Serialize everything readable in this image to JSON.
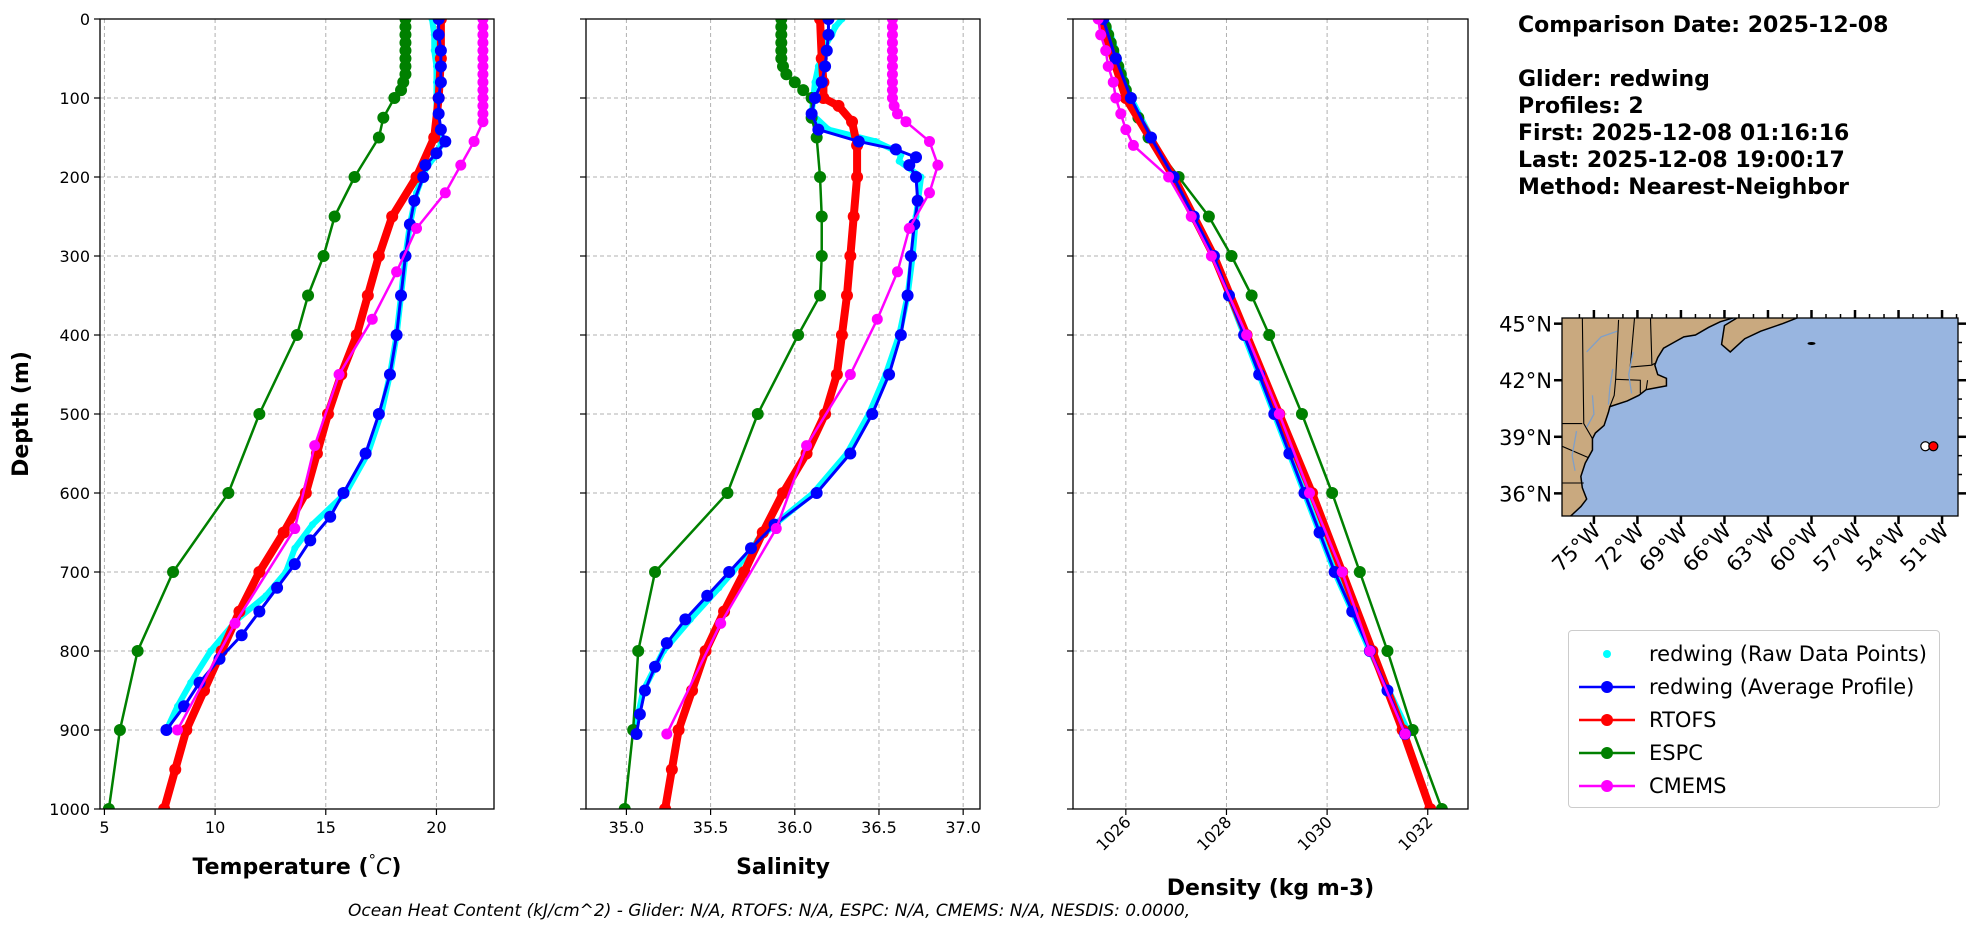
{
  "chart_data": [
    {
      "type": "line",
      "xlabel": "Temperature (°C)",
      "ylabel": "Depth (m)",
      "xlim": [
        4.8,
        22.6
      ],
      "ylim": [
        1000,
        0
      ],
      "xticks": [
        5,
        10,
        15,
        20
      ],
      "yticks": [
        0,
        100,
        200,
        300,
        400,
        500,
        600,
        700,
        800,
        900,
        1000
      ],
      "grid": true,
      "raw": {
        "name": "redwing (Raw Data Points)",
        "depth": [
          0,
          20,
          40,
          60,
          80,
          100,
          120,
          140,
          160,
          175,
          190,
          220,
          260,
          300,
          350,
          400,
          450,
          500,
          550,
          600,
          640,
          670,
          700,
          730,
          760,
          800,
          840,
          870,
          900
        ],
        "values": [
          19.8,
          19.9,
          19.9,
          20.0,
          20.0,
          20.0,
          20.0,
          20.1,
          20.2,
          19.9,
          19.5,
          19.1,
          18.8,
          18.6,
          18.4,
          18.2,
          17.9,
          17.5,
          16.9,
          15.9,
          14.4,
          13.6,
          13.2,
          12.3,
          11.0,
          9.8,
          8.9,
          8.3,
          7.8
        ]
      },
      "series": [
        {
          "name": "redwing (Average Profile)",
          "depth": [
            0,
            20,
            40,
            60,
            80,
            100,
            120,
            140,
            155,
            170,
            185,
            200,
            230,
            260,
            300,
            350,
            400,
            450,
            500,
            550,
            600,
            630,
            660,
            690,
            720,
            750,
            780,
            810,
            840,
            870,
            900
          ],
          "values": [
            20.1,
            20.1,
            20.2,
            20.2,
            20.2,
            20.1,
            20.1,
            20.2,
            20.4,
            20.0,
            19.5,
            19.4,
            19.0,
            18.8,
            18.6,
            18.4,
            18.2,
            17.9,
            17.4,
            16.8,
            15.8,
            15.2,
            14.3,
            13.6,
            12.8,
            12.0,
            11.2,
            10.2,
            9.3,
            8.6,
            7.8
          ]
        },
        {
          "name": "RTOFS",
          "depth": [
            0,
            50,
            100,
            150,
            200,
            250,
            300,
            350,
            400,
            450,
            500,
            550,
            600,
            650,
            700,
            750,
            800,
            850,
            900,
            950,
            1000
          ],
          "values": [
            20.2,
            20.2,
            20.1,
            19.9,
            19.1,
            18.0,
            17.4,
            16.9,
            16.4,
            15.7,
            15.1,
            14.6,
            14.1,
            13.1,
            12.0,
            11.1,
            10.3,
            9.5,
            8.7,
            8.2,
            7.7
          ]
        },
        {
          "name": "ESPC",
          "depth": [
            0,
            10,
            20,
            30,
            40,
            50,
            60,
            70,
            80,
            90,
            100,
            125,
            150,
            200,
            250,
            300,
            350,
            400,
            500,
            600,
            700,
            800,
            900,
            1000
          ],
          "values": [
            18.6,
            18.6,
            18.6,
            18.6,
            18.6,
            18.6,
            18.6,
            18.6,
            18.5,
            18.4,
            18.1,
            17.6,
            17.4,
            16.3,
            15.4,
            14.9,
            14.2,
            13.7,
            12.0,
            10.6,
            8.1,
            6.5,
            5.7,
            5.2
          ]
        },
        {
          "name": "CMEMS",
          "depth": [
            0,
            10,
            20,
            30,
            40,
            50,
            60,
            70,
            80,
            90,
            100,
            110,
            120,
            130,
            155,
            185,
            220,
            265,
            320,
            380,
            450,
            540,
            645,
            765,
            900
          ],
          "values": [
            22.1,
            22.1,
            22.1,
            22.1,
            22.1,
            22.1,
            22.1,
            22.1,
            22.1,
            22.1,
            22.1,
            22.1,
            22.1,
            22.1,
            21.7,
            21.1,
            20.4,
            19.1,
            18.2,
            17.1,
            15.6,
            14.5,
            13.6,
            10.9,
            8.3
          ]
        }
      ]
    },
    {
      "type": "line",
      "xlabel": "Salinity",
      "xlim": [
        34.76,
        37.1
      ],
      "ylim": [
        1000,
        0
      ],
      "xticks": [
        "35.0",
        "35.5",
        "36.0",
        "36.5",
        "37.0"
      ],
      "grid": true,
      "raw": {
        "name": "redwing (Raw Data Points)",
        "depth": [
          0,
          10,
          20,
          30,
          40,
          50,
          60,
          80,
          100,
          120,
          140,
          155,
          165,
          172,
          180,
          200,
          250,
          300,
          350,
          400,
          450,
          500,
          550,
          600,
          640,
          660,
          675,
          690,
          700,
          720,
          760,
          800,
          850,
          900
        ],
        "values": [
          36.28,
          36.24,
          36.22,
          36.19,
          36.17,
          36.16,
          36.14,
          36.12,
          36.11,
          36.1,
          36.2,
          36.48,
          36.58,
          36.63,
          36.62,
          36.75,
          36.72,
          36.7,
          36.67,
          36.62,
          36.54,
          36.44,
          36.31,
          36.11,
          35.88,
          35.78,
          35.73,
          35.67,
          35.63,
          35.55,
          35.38,
          35.22,
          35.1,
          35.05
        ]
      },
      "series": [
        {
          "name": "redwing (Average Profile)",
          "depth": [
            0,
            20,
            40,
            60,
            80,
            100,
            120,
            140,
            155,
            165,
            175,
            185,
            200,
            230,
            260,
            300,
            350,
            400,
            450,
            500,
            550,
            600,
            640,
            670,
            700,
            730,
            760,
            790,
            820,
            850,
            880,
            905
          ],
          "values": [
            36.2,
            36.2,
            36.19,
            36.18,
            36.16,
            36.12,
            36.1,
            36.14,
            36.38,
            36.6,
            36.72,
            36.68,
            36.72,
            36.73,
            36.71,
            36.69,
            36.67,
            36.63,
            36.56,
            36.46,
            36.33,
            36.13,
            35.88,
            35.74,
            35.61,
            35.48,
            35.35,
            35.24,
            35.17,
            35.11,
            35.08,
            35.06
          ]
        },
        {
          "name": "RTOFS",
          "depth": [
            0,
            50,
            80,
            100,
            110,
            130,
            160,
            200,
            250,
            300,
            350,
            400,
            450,
            500,
            550,
            600,
            650,
            700,
            750,
            800,
            850,
            900,
            950,
            1000
          ],
          "values": [
            36.15,
            36.16,
            36.17,
            36.17,
            36.26,
            36.34,
            36.37,
            36.37,
            36.35,
            36.33,
            36.31,
            36.28,
            36.25,
            36.18,
            36.07,
            35.93,
            35.81,
            35.7,
            35.58,
            35.47,
            35.39,
            35.31,
            35.27,
            35.23
          ]
        },
        {
          "name": "ESPC",
          "depth": [
            0,
            10,
            20,
            30,
            40,
            50,
            60,
            70,
            80,
            90,
            100,
            125,
            150,
            200,
            250,
            300,
            350,
            400,
            500,
            600,
            700,
            800,
            900,
            1000
          ],
          "values": [
            35.92,
            35.92,
            35.92,
            35.92,
            35.92,
            35.92,
            35.93,
            35.95,
            36.0,
            36.05,
            36.1,
            36.1,
            36.13,
            36.15,
            36.16,
            36.16,
            36.15,
            36.02,
            35.78,
            35.6,
            35.17,
            35.07,
            35.04,
            34.99
          ]
        },
        {
          "name": "CMEMS",
          "depth": [
            0,
            10,
            20,
            30,
            40,
            50,
            60,
            70,
            80,
            90,
            100,
            110,
            120,
            130,
            155,
            185,
            220,
            265,
            320,
            380,
            450,
            540,
            645,
            765,
            905
          ],
          "values": [
            36.58,
            36.58,
            36.58,
            36.58,
            36.58,
            36.58,
            36.58,
            36.58,
            36.58,
            36.58,
            36.58,
            36.59,
            36.61,
            36.66,
            36.8,
            36.85,
            36.8,
            36.68,
            36.61,
            36.49,
            36.33,
            36.07,
            35.89,
            35.56,
            35.24
          ]
        }
      ]
    },
    {
      "type": "line",
      "xlabel": "Density (kg m-3)",
      "xlim": [
        1024.95,
        1032.8
      ],
      "ylim": [
        1000,
        0
      ],
      "xticks": [
        1026,
        1028,
        1030,
        1032
      ],
      "grid": true,
      "raw": {
        "name": "redwing (Raw Data Points)",
        "depth": [
          0,
          50,
          100,
          150,
          200,
          300,
          400,
          500,
          600,
          700,
          800,
          900
        ],
        "values": [
          1025.6,
          1025.85,
          1026.1,
          1026.5,
          1026.95,
          1027.75,
          1028.35,
          1028.95,
          1029.55,
          1030.15,
          1030.85,
          1031.6
        ]
      },
      "series": [
        {
          "name": "redwing (Average Profile)",
          "depth": [
            0,
            50,
            100,
            150,
            200,
            250,
            300,
            350,
            400,
            450,
            500,
            550,
            600,
            650,
            700,
            750,
            800,
            850,
            905
          ],
          "values": [
            1025.55,
            1025.8,
            1026.1,
            1026.5,
            1026.95,
            1027.35,
            1027.75,
            1028.05,
            1028.35,
            1028.65,
            1028.95,
            1029.25,
            1029.55,
            1029.85,
            1030.15,
            1030.5,
            1030.85,
            1031.2,
            1031.55
          ]
        },
        {
          "name": "RTOFS",
          "depth": [
            0,
            100,
            200,
            300,
            400,
            500,
            600,
            700,
            800,
            900,
            1000
          ],
          "values": [
            1025.5,
            1026.0,
            1026.95,
            1027.75,
            1028.4,
            1029.05,
            1029.7,
            1030.3,
            1030.9,
            1031.5,
            1032.05
          ]
        },
        {
          "name": "ESPC",
          "depth": [
            0,
            10,
            20,
            30,
            40,
            50,
            60,
            70,
            80,
            90,
            100,
            125,
            150,
            200,
            250,
            300,
            350,
            400,
            500,
            600,
            700,
            800,
            900,
            1000
          ],
          "values": [
            1025.55,
            1025.6,
            1025.65,
            1025.7,
            1025.75,
            1025.8,
            1025.85,
            1025.9,
            1025.95,
            1026.0,
            1026.1,
            1026.25,
            1026.45,
            1027.05,
            1027.65,
            1028.1,
            1028.5,
            1028.85,
            1029.5,
            1030.1,
            1030.65,
            1031.2,
            1031.7,
            1032.28
          ]
        },
        {
          "name": "CMEMS",
          "depth": [
            0,
            20,
            40,
            60,
            80,
            100,
            120,
            140,
            160,
            200,
            250,
            300,
            400,
            500,
            600,
            700,
            800,
            905
          ],
          "values": [
            1025.45,
            1025.5,
            1025.6,
            1025.65,
            1025.75,
            1025.8,
            1025.9,
            1026.0,
            1026.15,
            1026.85,
            1027.3,
            1027.7,
            1028.4,
            1029.05,
            1029.65,
            1030.3,
            1030.85,
            1031.55
          ]
        }
      ]
    }
  ],
  "colors": {
    "raw": "#00ffff",
    "redwing (Average Profile)": "#0000ff",
    "RTOFS": "#ff0000",
    "ESPC": "#008000",
    "CMEMS": "#ff00ff",
    "ocean": "#98b5e0",
    "land": "#c9a97f"
  },
  "info": {
    "date_line": "Comparison Date: 2025-12-08",
    "glider_line": "Glider: redwing",
    "profiles_line": "Profiles: 2",
    "first_line": "First: 2025-12-08 01:16:16",
    "last_line": "Last: 2025-12-08 19:00:17",
    "method_line": "Method: Nearest-Neighbor"
  },
  "map": {
    "lat_ticks": [
      "45°N",
      "42°N",
      "39°N",
      "36°N"
    ],
    "lon_ticks": [
      "75°W",
      "72°W",
      "69°W",
      "66°W",
      "63°W",
      "60°W",
      "57°W",
      "54°W",
      "51°W"
    ],
    "glider_position": {
      "lon": -51.6,
      "lat": 38.5
    }
  },
  "legend": {
    "entries": [
      "redwing (Raw Data Points)",
      "redwing (Average Profile)",
      "RTOFS",
      "ESPC",
      "CMEMS"
    ]
  },
  "footer": "Ocean Heat Content (kJ/cm^2) - Glider: N/A,  RTOFS: N/A,  ESPC: N/A,  CMEMS: N/A,  NESDIS: 0.0000,"
}
